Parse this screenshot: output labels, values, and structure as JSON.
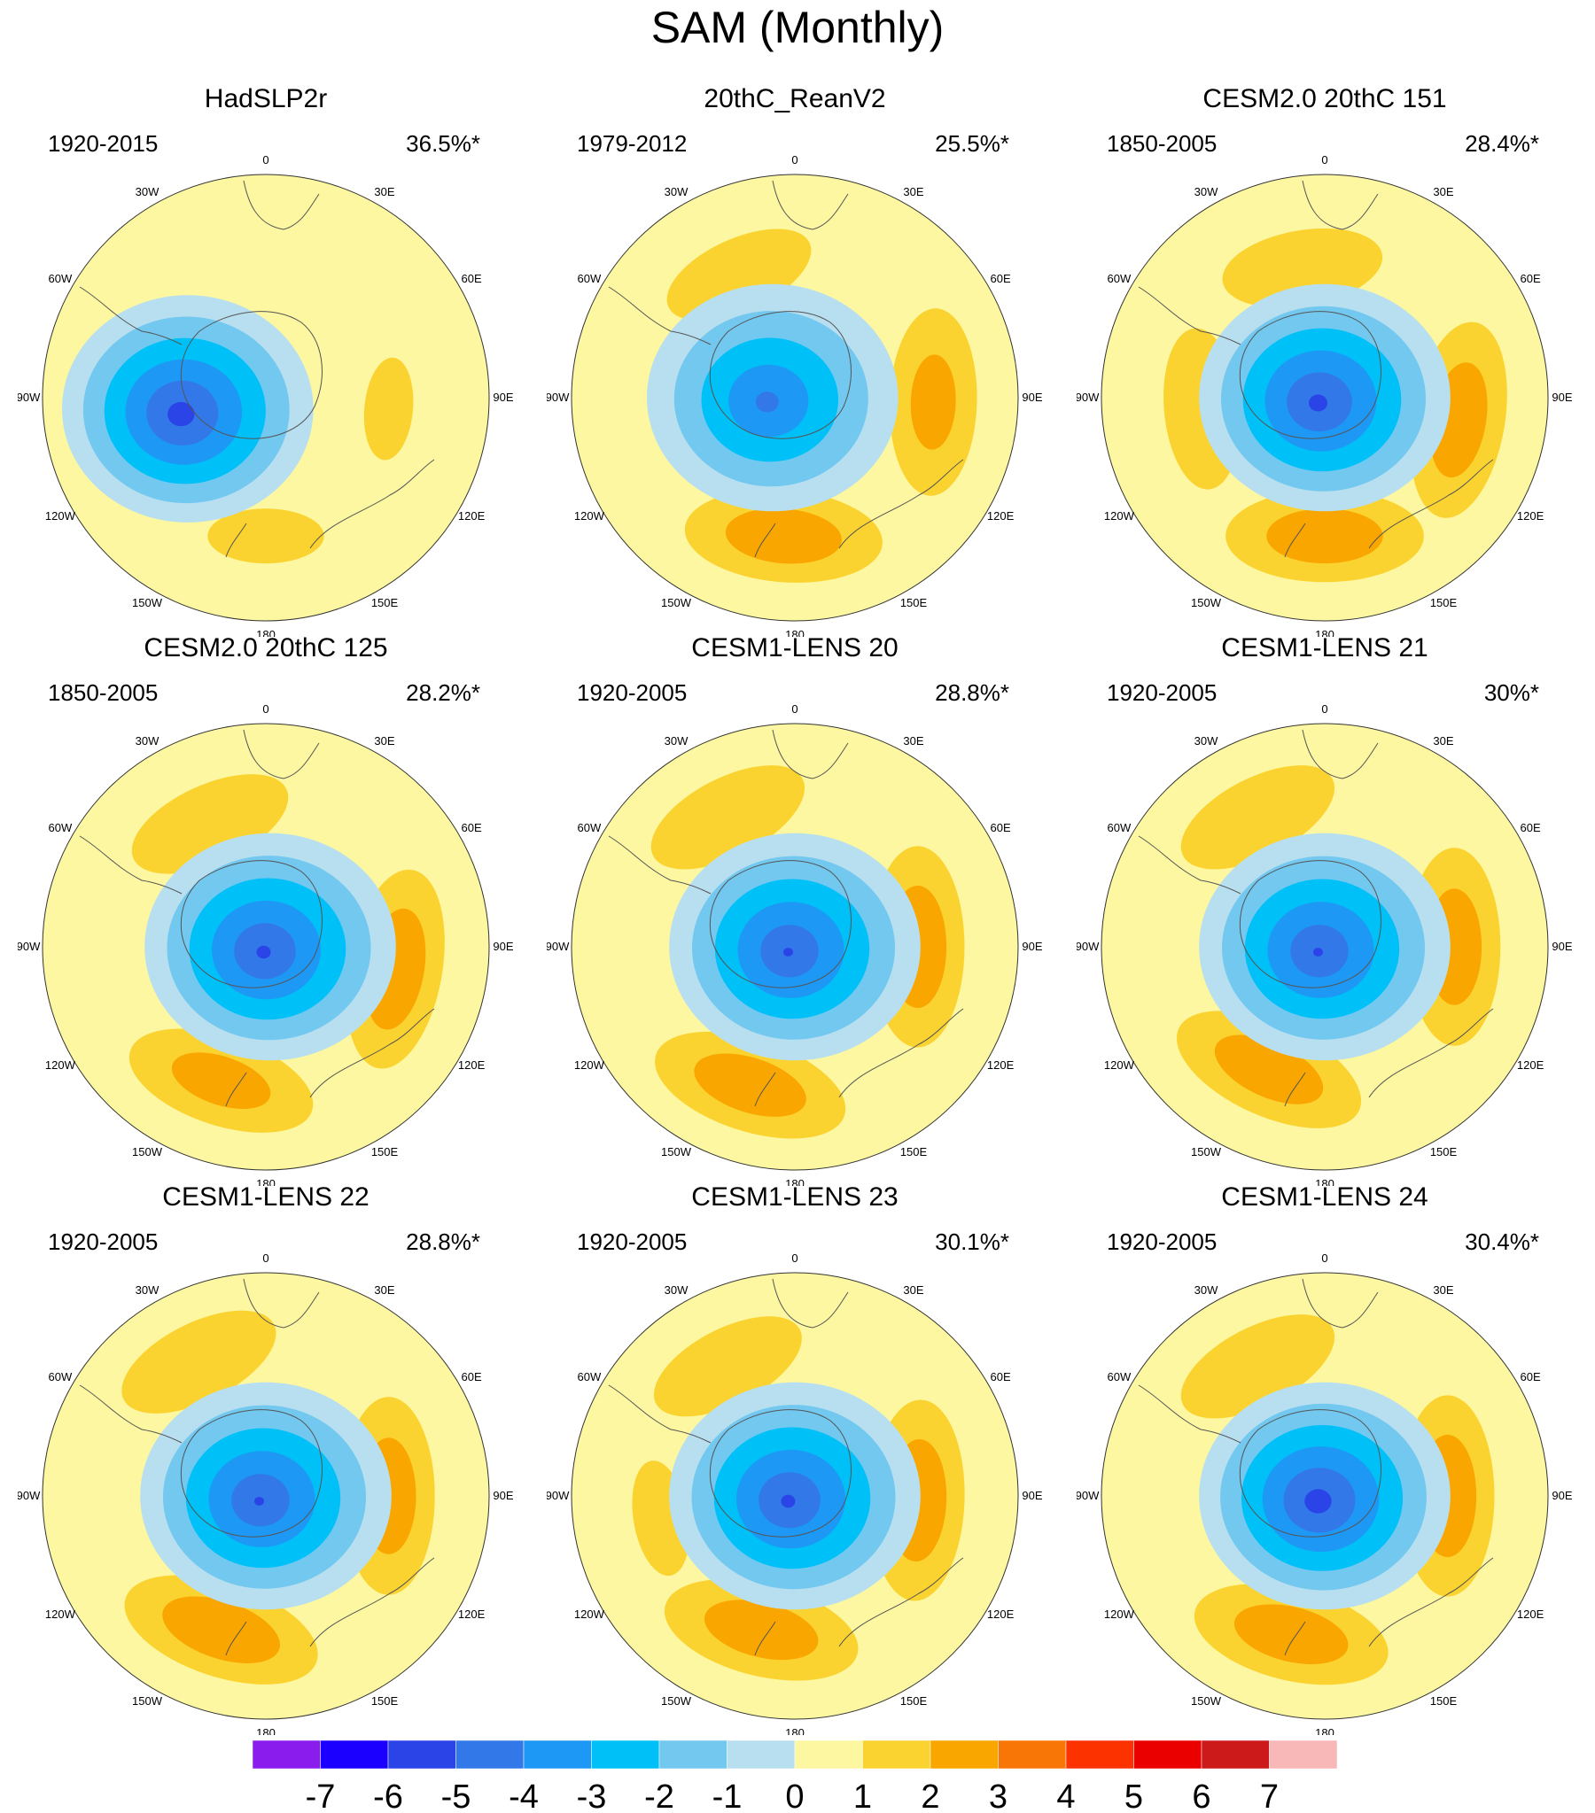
{
  "figure": {
    "title": "SAM (Monthly)"
  },
  "longitude_labels": [
    "0",
    "30E",
    "60E",
    "90E",
    "120E",
    "150E",
    "180",
    "150W",
    "120W",
    "90W",
    "60W",
    "30W"
  ],
  "panels": [
    {
      "title": "HadSLP2r",
      "period": "1920-2015",
      "variance": "36.5%*",
      "pattern": {
        "min_value": -6,
        "low_center": [
          -0.35,
          0.05
        ],
        "low_depth": -5.6,
        "max_positive": 2,
        "high_centers": [
          [
            0.55,
            0.05,
            1.2
          ],
          [
            0.0,
            0.62,
            1.3
          ]
        ]
      }
    },
    {
      "title": "20thC_ReanV2",
      "period": "1979-2012",
      "variance": "25.5%*",
      "pattern": {
        "min_value": -5,
        "low_center": [
          -0.1,
          0.0
        ],
        "low_depth": -4.4,
        "max_positive": 3,
        "high_centers": [
          [
            0.62,
            0.02,
            2.3
          ],
          [
            -0.05,
            0.62,
            2.6
          ],
          [
            -0.25,
            -0.55,
            1.7
          ]
        ]
      }
    },
    {
      "title": "CESM2.0 20thC 151",
      "period": "1850-2005",
      "variance": "28.4%*",
      "pattern": {
        "min_value": -5,
        "low_center": [
          0.0,
          0.0
        ],
        "low_depth": -5.4,
        "max_positive": 3,
        "high_centers": [
          [
            0.6,
            0.1,
            2.6
          ],
          [
            0.0,
            0.62,
            2.6
          ],
          [
            -0.55,
            0.05,
            1.8
          ],
          [
            -0.1,
            -0.58,
            1.8
          ]
        ]
      }
    },
    {
      "title": "CESM2.0 20thC 125",
      "period": "1850-2005",
      "variance": "28.2%*",
      "pattern": {
        "min_value": -5,
        "low_center": [
          0.02,
          0.0
        ],
        "low_depth": -5.3,
        "max_positive": 3,
        "high_centers": [
          [
            0.58,
            0.1,
            2.7
          ],
          [
            -0.2,
            0.6,
            2.4
          ],
          [
            -0.25,
            -0.55,
            1.9
          ]
        ]
      }
    },
    {
      "title": "CESM1-LENS 20",
      "period": "1920-2005",
      "variance": "28.8%*",
      "pattern": {
        "min_value": -5,
        "low_center": [
          0.0,
          0.0
        ],
        "low_depth": -5.2,
        "max_positive": 3,
        "high_centers": [
          [
            0.55,
            0.0,
            2.7
          ],
          [
            -0.2,
            0.62,
            2.6
          ],
          [
            -0.3,
            -0.58,
            1.9
          ]
        ]
      }
    },
    {
      "title": "CESM1-LENS 21",
      "period": "1920-2005",
      "variance": "30%*",
      "pattern": {
        "min_value": -5,
        "low_center": [
          0.0,
          0.0
        ],
        "low_depth": -5.2,
        "max_positive": 3,
        "high_centers": [
          [
            0.58,
            0.0,
            2.6
          ],
          [
            -0.25,
            0.55,
            2.6
          ],
          [
            -0.3,
            -0.58,
            1.9
          ]
        ]
      }
    },
    {
      "title": "CESM1-LENS 22",
      "period": "1920-2005",
      "variance": "28.8%*",
      "pattern": {
        "min_value": -5,
        "low_center": [
          0.0,
          0.0
        ],
        "low_depth": -5.2,
        "max_positive": 3,
        "high_centers": [
          [
            0.55,
            0.0,
            2.6
          ],
          [
            -0.2,
            0.6,
            2.7
          ],
          [
            -0.3,
            -0.6,
            1.9
          ]
        ]
      }
    },
    {
      "title": "CESM1-LENS 23",
      "period": "1920-2005",
      "variance": "30.1%*",
      "pattern": {
        "min_value": -5,
        "low_center": [
          0.0,
          0.0
        ],
        "low_depth": -5.3,
        "max_positive": 3,
        "high_centers": [
          [
            0.55,
            0.02,
            2.7
          ],
          [
            -0.15,
            0.6,
            2.6
          ],
          [
            -0.3,
            -0.58,
            1.8
          ],
          [
            -0.6,
            0.1,
            1.3
          ]
        ]
      }
    },
    {
      "title": "CESM1-LENS 24",
      "period": "1920-2005",
      "variance": "30.4%*",
      "pattern": {
        "min_value": -6,
        "low_center": [
          0.0,
          0.0
        ],
        "low_depth": -5.6,
        "max_positive": 3,
        "high_centers": [
          [
            0.55,
            0.0,
            2.7
          ],
          [
            -0.15,
            0.62,
            2.6
          ],
          [
            -0.3,
            -0.58,
            1.9
          ]
        ]
      }
    }
  ],
  "colorbar": {
    "levels": [
      "-7",
      "-6",
      "-5",
      "-4",
      "-3",
      "-2",
      "-1",
      "0",
      "1",
      "2",
      "3",
      "4",
      "5",
      "6",
      "7"
    ],
    "colors": [
      "#8a1dee",
      "#1c00ff",
      "#2a44e8",
      "#3278e8",
      "#1e98f5",
      "#00c0f8",
      "#72c8ef",
      "#b8dff0",
      "#fcf7a0",
      "#fbd330",
      "#f9a600",
      "#f87606",
      "#fc3300",
      "#eb0000",
      "#cc1a1a",
      "#f9b8b8"
    ]
  }
}
